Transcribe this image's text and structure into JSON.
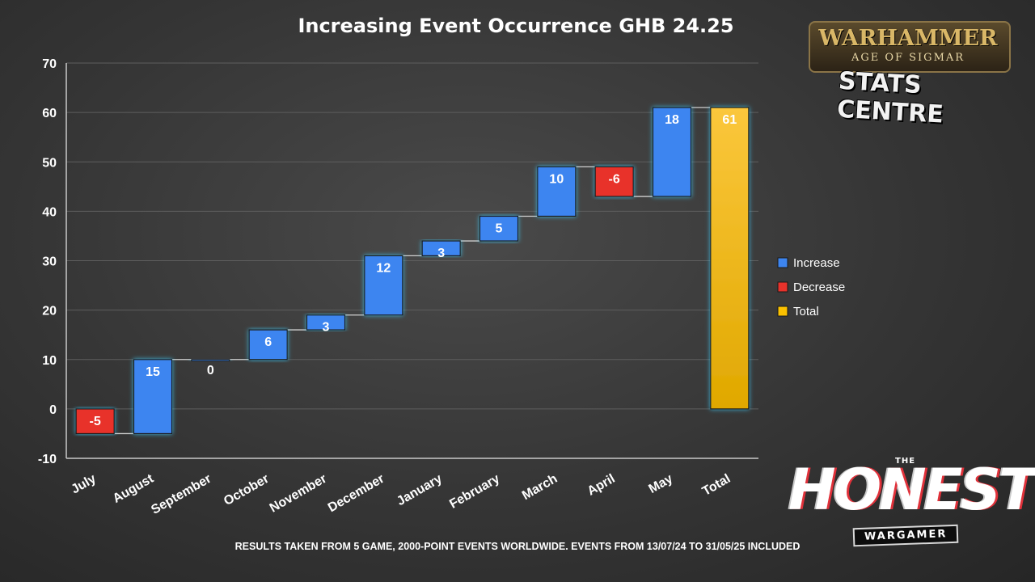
{
  "chart_data": {
    "type": "waterfall",
    "title": "Increasing Event Occurrence GHB 24.25",
    "categories": [
      "July",
      "August",
      "September",
      "October",
      "November",
      "December",
      "January",
      "February",
      "March",
      "April",
      "May",
      "Total"
    ],
    "values": [
      -5,
      15,
      0,
      6,
      3,
      12,
      3,
      5,
      10,
      -6,
      18,
      61
    ],
    "labels": [
      "-5",
      "15",
      "0",
      "6",
      "3",
      "12",
      "3",
      "5",
      "10",
      "-6",
      "18",
      "61"
    ],
    "kinds": [
      "decrease",
      "increase",
      "increase",
      "increase",
      "increase",
      "increase",
      "increase",
      "increase",
      "increase",
      "decrease",
      "increase",
      "total"
    ],
    "ylim": [
      -10,
      70
    ],
    "yticks": [
      "-10",
      "0",
      "10",
      "20",
      "30",
      "40",
      "50",
      "60",
      "70"
    ],
    "grid": true,
    "legend_position": "right",
    "legend": [
      {
        "key": "increase",
        "label": "Increase",
        "color": "#3d85f0"
      },
      {
        "key": "decrease",
        "label": "Decrease",
        "color": "#e8322b"
      },
      {
        "key": "total",
        "label": "Total",
        "color": "#fbc100"
      }
    ]
  },
  "logos": {
    "warhammer": "WARHAMMER",
    "warhammer_sub": "AGE OF SIGMAR",
    "stats": "STATS CENTRE",
    "honest_the": "THE",
    "honest": "HONEST",
    "honest_sub": "WARGAMER"
  },
  "footnote": "RESULTS TAKEN FROM 5 GAME, 2000-POINT EVENTS WORLDWIDE. EVENTS FROM 13/07/24 TO 31/05/25 INCLUDED"
}
